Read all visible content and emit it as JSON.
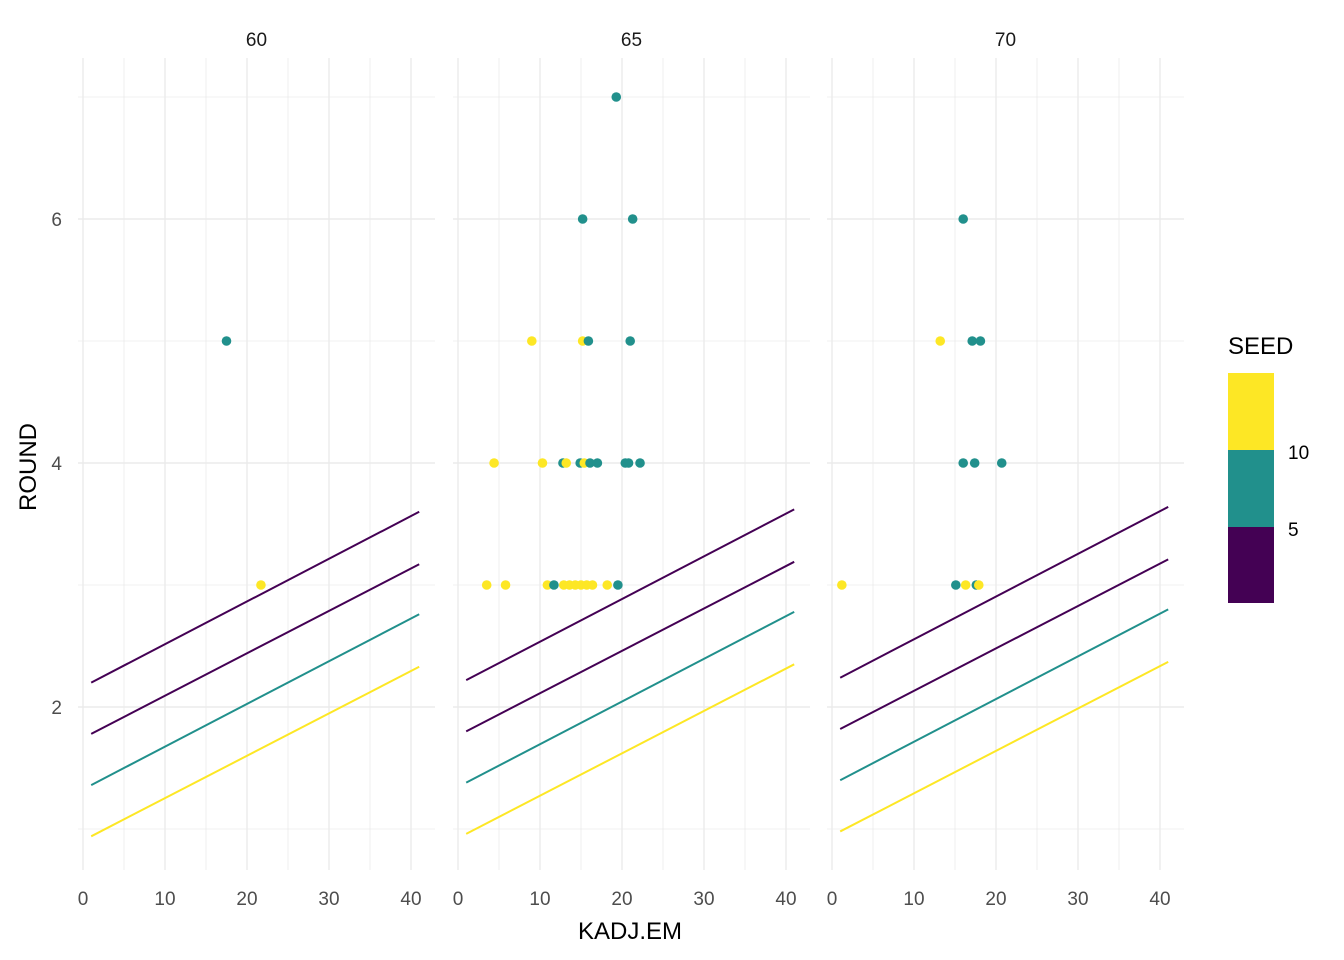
{
  "chart_data": {
    "type": "scatter",
    "facet_variable": "",
    "facets": [
      "60",
      "65",
      "70"
    ],
    "xlabel": "KADJ.EM",
    "ylabel": "ROUND",
    "xlim": [
      -0.5,
      43
    ],
    "ylim": [
      0.7,
      7.3
    ],
    "x_ticks": [
      0,
      10,
      20,
      30,
      40
    ],
    "y_ticks": [
      2,
      4,
      6
    ],
    "grid": true,
    "legend": {
      "title": "SEED",
      "type": "colorbar-binned",
      "placement": "right",
      "labels": [
        "10",
        "5"
      ],
      "bins": [
        {
          "range": "high",
          "color": "#FDE725"
        },
        {
          "range": "mid",
          "color": "#21908C"
        },
        {
          "range": "low",
          "color": "#440154"
        }
      ]
    },
    "colors": {
      "yellow": "#FDE725",
      "teal": "#21908C",
      "purple": "#440154"
    },
    "panels": [
      {
        "facet": "60",
        "points": [
          {
            "x": 17.5,
            "y": 5,
            "color": "teal"
          },
          {
            "x": 21.7,
            "y": 3,
            "color": "yellow"
          }
        ],
        "lines": [
          {
            "color": "purple",
            "x": [
              1,
              41
            ],
            "y": [
              2.2,
              3.6
            ]
          },
          {
            "color": "purple",
            "x": [
              1,
              41
            ],
            "y": [
              1.78,
              3.17
            ]
          },
          {
            "color": "teal",
            "x": [
              1,
              41
            ],
            "y": [
              1.36,
              2.76
            ]
          },
          {
            "color": "yellow",
            "x": [
              1,
              41
            ],
            "y": [
              0.94,
              2.33
            ]
          }
        ]
      },
      {
        "facet": "65",
        "points": [
          {
            "x": 19.3,
            "y": 7,
            "color": "teal"
          },
          {
            "x": 15.2,
            "y": 6,
            "color": "teal"
          },
          {
            "x": 21.3,
            "y": 6,
            "color": "teal"
          },
          {
            "x": 9.0,
            "y": 5,
            "color": "yellow"
          },
          {
            "x": 15.2,
            "y": 5,
            "color": "yellow"
          },
          {
            "x": 15.9,
            "y": 5,
            "color": "teal"
          },
          {
            "x": 21.0,
            "y": 5,
            "color": "teal"
          },
          {
            "x": 4.4,
            "y": 4,
            "color": "yellow"
          },
          {
            "x": 10.3,
            "y": 4,
            "color": "yellow"
          },
          {
            "x": 12.8,
            "y": 4,
            "color": "teal"
          },
          {
            "x": 13.2,
            "y": 4,
            "color": "yellow"
          },
          {
            "x": 14.9,
            "y": 4,
            "color": "teal"
          },
          {
            "x": 15.4,
            "y": 4,
            "color": "yellow"
          },
          {
            "x": 16.1,
            "y": 4,
            "color": "teal"
          },
          {
            "x": 17.0,
            "y": 4,
            "color": "teal"
          },
          {
            "x": 20.4,
            "y": 4,
            "color": "teal"
          },
          {
            "x": 20.8,
            "y": 4,
            "color": "teal"
          },
          {
            "x": 22.2,
            "y": 4,
            "color": "teal"
          },
          {
            "x": 3.5,
            "y": 3,
            "color": "yellow"
          },
          {
            "x": 5.8,
            "y": 3,
            "color": "yellow"
          },
          {
            "x": 10.9,
            "y": 3,
            "color": "yellow"
          },
          {
            "x": 11.7,
            "y": 3,
            "color": "teal"
          },
          {
            "x": 12.9,
            "y": 3,
            "color": "yellow"
          },
          {
            "x": 13.6,
            "y": 3,
            "color": "yellow"
          },
          {
            "x": 14.3,
            "y": 3,
            "color": "yellow"
          },
          {
            "x": 15.0,
            "y": 3,
            "color": "yellow"
          },
          {
            "x": 15.7,
            "y": 3,
            "color": "yellow"
          },
          {
            "x": 16.4,
            "y": 3,
            "color": "yellow"
          },
          {
            "x": 18.2,
            "y": 3,
            "color": "yellow"
          },
          {
            "x": 19.5,
            "y": 3,
            "color": "teal"
          }
        ],
        "lines": [
          {
            "color": "purple",
            "x": [
              1,
              41
            ],
            "y": [
              2.22,
              3.62
            ]
          },
          {
            "color": "purple",
            "x": [
              1,
              41
            ],
            "y": [
              1.8,
              3.19
            ]
          },
          {
            "color": "teal",
            "x": [
              1,
              41
            ],
            "y": [
              1.38,
              2.78
            ]
          },
          {
            "color": "yellow",
            "x": [
              1,
              41
            ],
            "y": [
              0.96,
              2.35
            ]
          }
        ]
      },
      {
        "facet": "70",
        "points": [
          {
            "x": 16.0,
            "y": 6,
            "color": "teal"
          },
          {
            "x": 13.2,
            "y": 5,
            "color": "yellow"
          },
          {
            "x": 17.1,
            "y": 5,
            "color": "teal"
          },
          {
            "x": 18.1,
            "y": 5,
            "color": "teal"
          },
          {
            "x": 16.0,
            "y": 4,
            "color": "teal"
          },
          {
            "x": 17.4,
            "y": 4,
            "color": "teal"
          },
          {
            "x": 20.7,
            "y": 4,
            "color": "teal"
          },
          {
            "x": 1.2,
            "y": 3,
            "color": "yellow"
          },
          {
            "x": 15.1,
            "y": 3,
            "color": "teal"
          },
          {
            "x": 16.3,
            "y": 3,
            "color": "yellow"
          },
          {
            "x": 17.6,
            "y": 3,
            "color": "teal"
          },
          {
            "x": 17.9,
            "y": 3,
            "color": "yellow"
          }
        ],
        "lines": [
          {
            "color": "purple",
            "x": [
              1,
              41
            ],
            "y": [
              2.24,
              3.64
            ]
          },
          {
            "color": "purple",
            "x": [
              1,
              41
            ],
            "y": [
              1.82,
              3.21
            ]
          },
          {
            "color": "teal",
            "x": [
              1,
              41
            ],
            "y": [
              1.4,
              2.8
            ]
          },
          {
            "color": "yellow",
            "x": [
              1,
              41
            ],
            "y": [
              0.98,
              2.37
            ]
          }
        ]
      }
    ]
  }
}
